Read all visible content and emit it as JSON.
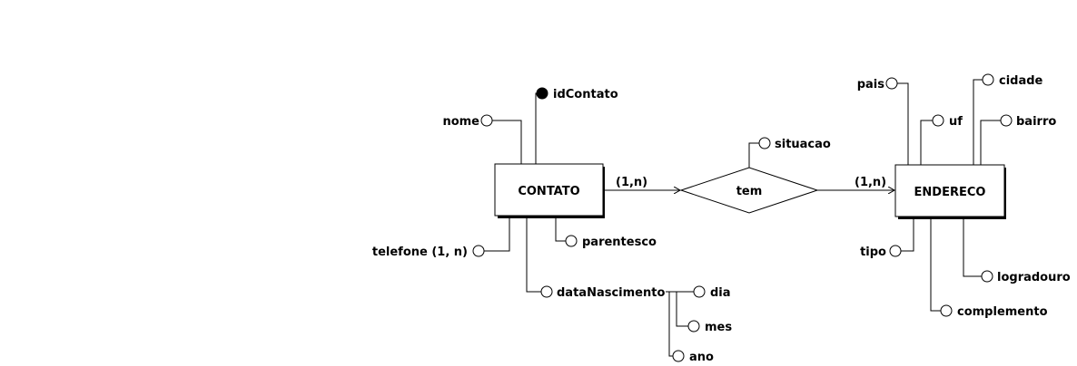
{
  "entities": {
    "contato": "CONTATO",
    "endereco": "ENDERECO"
  },
  "relationship": {
    "label": "tem",
    "card_left": "(1,n)",
    "card_right": "(1,n)"
  },
  "attributes": {
    "idContato": "idContato",
    "nome": "nome",
    "telefone": "telefone (1, n)",
    "parentesco": "parentesco",
    "dataNascimento": "dataNascimento",
    "dia": "dia",
    "mes": "mes",
    "ano": "ano",
    "situacao": "situacao",
    "pais": "pais",
    "uf": "uf",
    "cidade": "cidade",
    "bairro": "bairro",
    "tipo": "tipo",
    "logradouro": "logradouro",
    "complemento": "complemento"
  }
}
